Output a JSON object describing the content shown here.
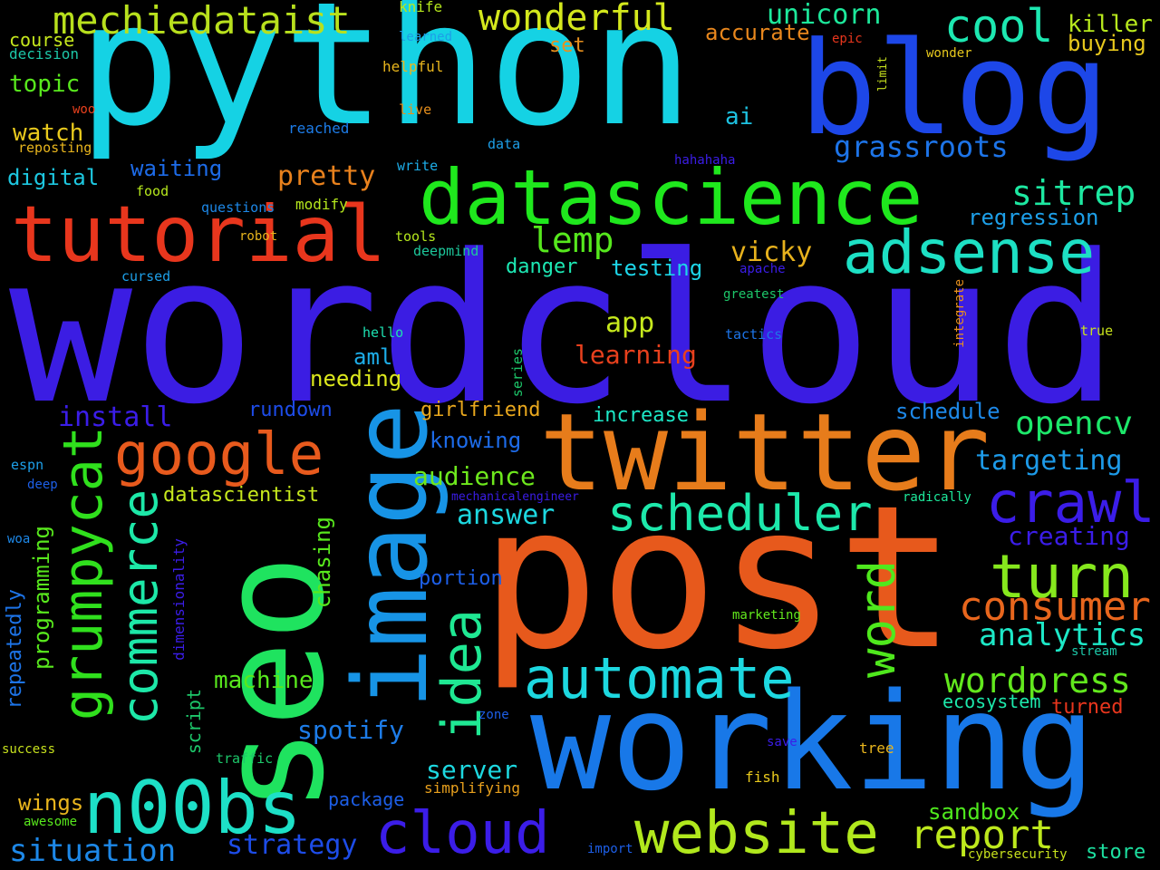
{
  "words": {
    "wordcloud": "wordcloud",
    "python": "python",
    "post": "post",
    "seo": "seo",
    "working": "working",
    "image": "image",
    "twitter": "twitter",
    "blog": "blog",
    "datascience": "datascience",
    "tutorial": "tutorial",
    "google": "google",
    "n00bs": "n00bs",
    "adsense": "adsense",
    "website": "website",
    "cloud": "cloud",
    "grumpycat": "grumpycat",
    "commerce": "commerce",
    "automate": "automate",
    "idea": "idea",
    "scheduler": "scheduler",
    "crawl": "crawl",
    "turn": "turn",
    "word": "word",
    "consumer": "consumer",
    "mechiedataist": "mechiedataist",
    "wonderful": "wonderful",
    "cool": "cool",
    "unicorn": "unicorn",
    "killer": "killer",
    "accurate": "accurate",
    "buying": "buying",
    "sitrep": "sitrep",
    "lemp": "lemp",
    "pretty": "pretty",
    "grassroots": "grassroots",
    "regression": "regression",
    "ai": "ai",
    "vicky": "vicky",
    "app": "app",
    "learning": "learning",
    "aml": "aml",
    "needing": "needing",
    "testing": "testing",
    "danger": "danger",
    "install": "install",
    "rundown": "rundown",
    "girlfriend": "girlfriend",
    "increase": "increase",
    "schedule": "schedule",
    "opencv": "opencv",
    "knowing": "knowing",
    "targeting": "targeting",
    "audience": "audience",
    "answer": "answer",
    "datascientist": "datascientist",
    "creating": "creating",
    "analytics": "analytics",
    "wordpress": "wordpress",
    "ecosystem": "ecosystem",
    "turned": "turned",
    "machine": "machine",
    "spotify": "spotify",
    "server": "server",
    "portion": "portion",
    "report": "report",
    "sandbox": "sandbox",
    "store": "store",
    "situation": "situation",
    "strategy": "strategy",
    "wings": "wings",
    "package": "package",
    "simplifying": "simplifying",
    "topic": "topic",
    "watch": "watch",
    "digital": "digital",
    "waiting": "waiting",
    "course": "course",
    "decision": "decision",
    "knife": "knife",
    "learned": "learned",
    "set": "set",
    "epic": "epic",
    "wonder": "wonder",
    "helpful": "helpful",
    "woo": "woo",
    "live": "live",
    "reposting": "reposting",
    "reached": "reached",
    "data": "data",
    "write": "write",
    "hahahaha": "hahahaha",
    "food": "food",
    "questions": "questions",
    "modify": "modify",
    "robot": "robot",
    "tools": "tools",
    "deepmind": "deepmind",
    "cursed": "cursed",
    "apache": "apache",
    "greatest": "greatest",
    "hello": "hello",
    "tactics": "tactics",
    "true": "true",
    "espn": "espn",
    "deep": "deep",
    "woa": "woa",
    "mechanicalengineer": "mechanicalengineer",
    "radically": "radically",
    "marketing": "marketing",
    "stream": "stream",
    "zone": "zone",
    "save": "save",
    "tree": "tree",
    "success": "success",
    "traffic": "traffic",
    "fish": "fish",
    "awesome": "awesome",
    "import": "import",
    "cybersecurity": "cybersecurity",
    "limit": "limit",
    "integrate": "integrate",
    "series": "series",
    "chasing": "chasing",
    "programming": "programming",
    "repeatedly": "repeatedly",
    "dimensionality": "dimensionality",
    "script": "script"
  }
}
